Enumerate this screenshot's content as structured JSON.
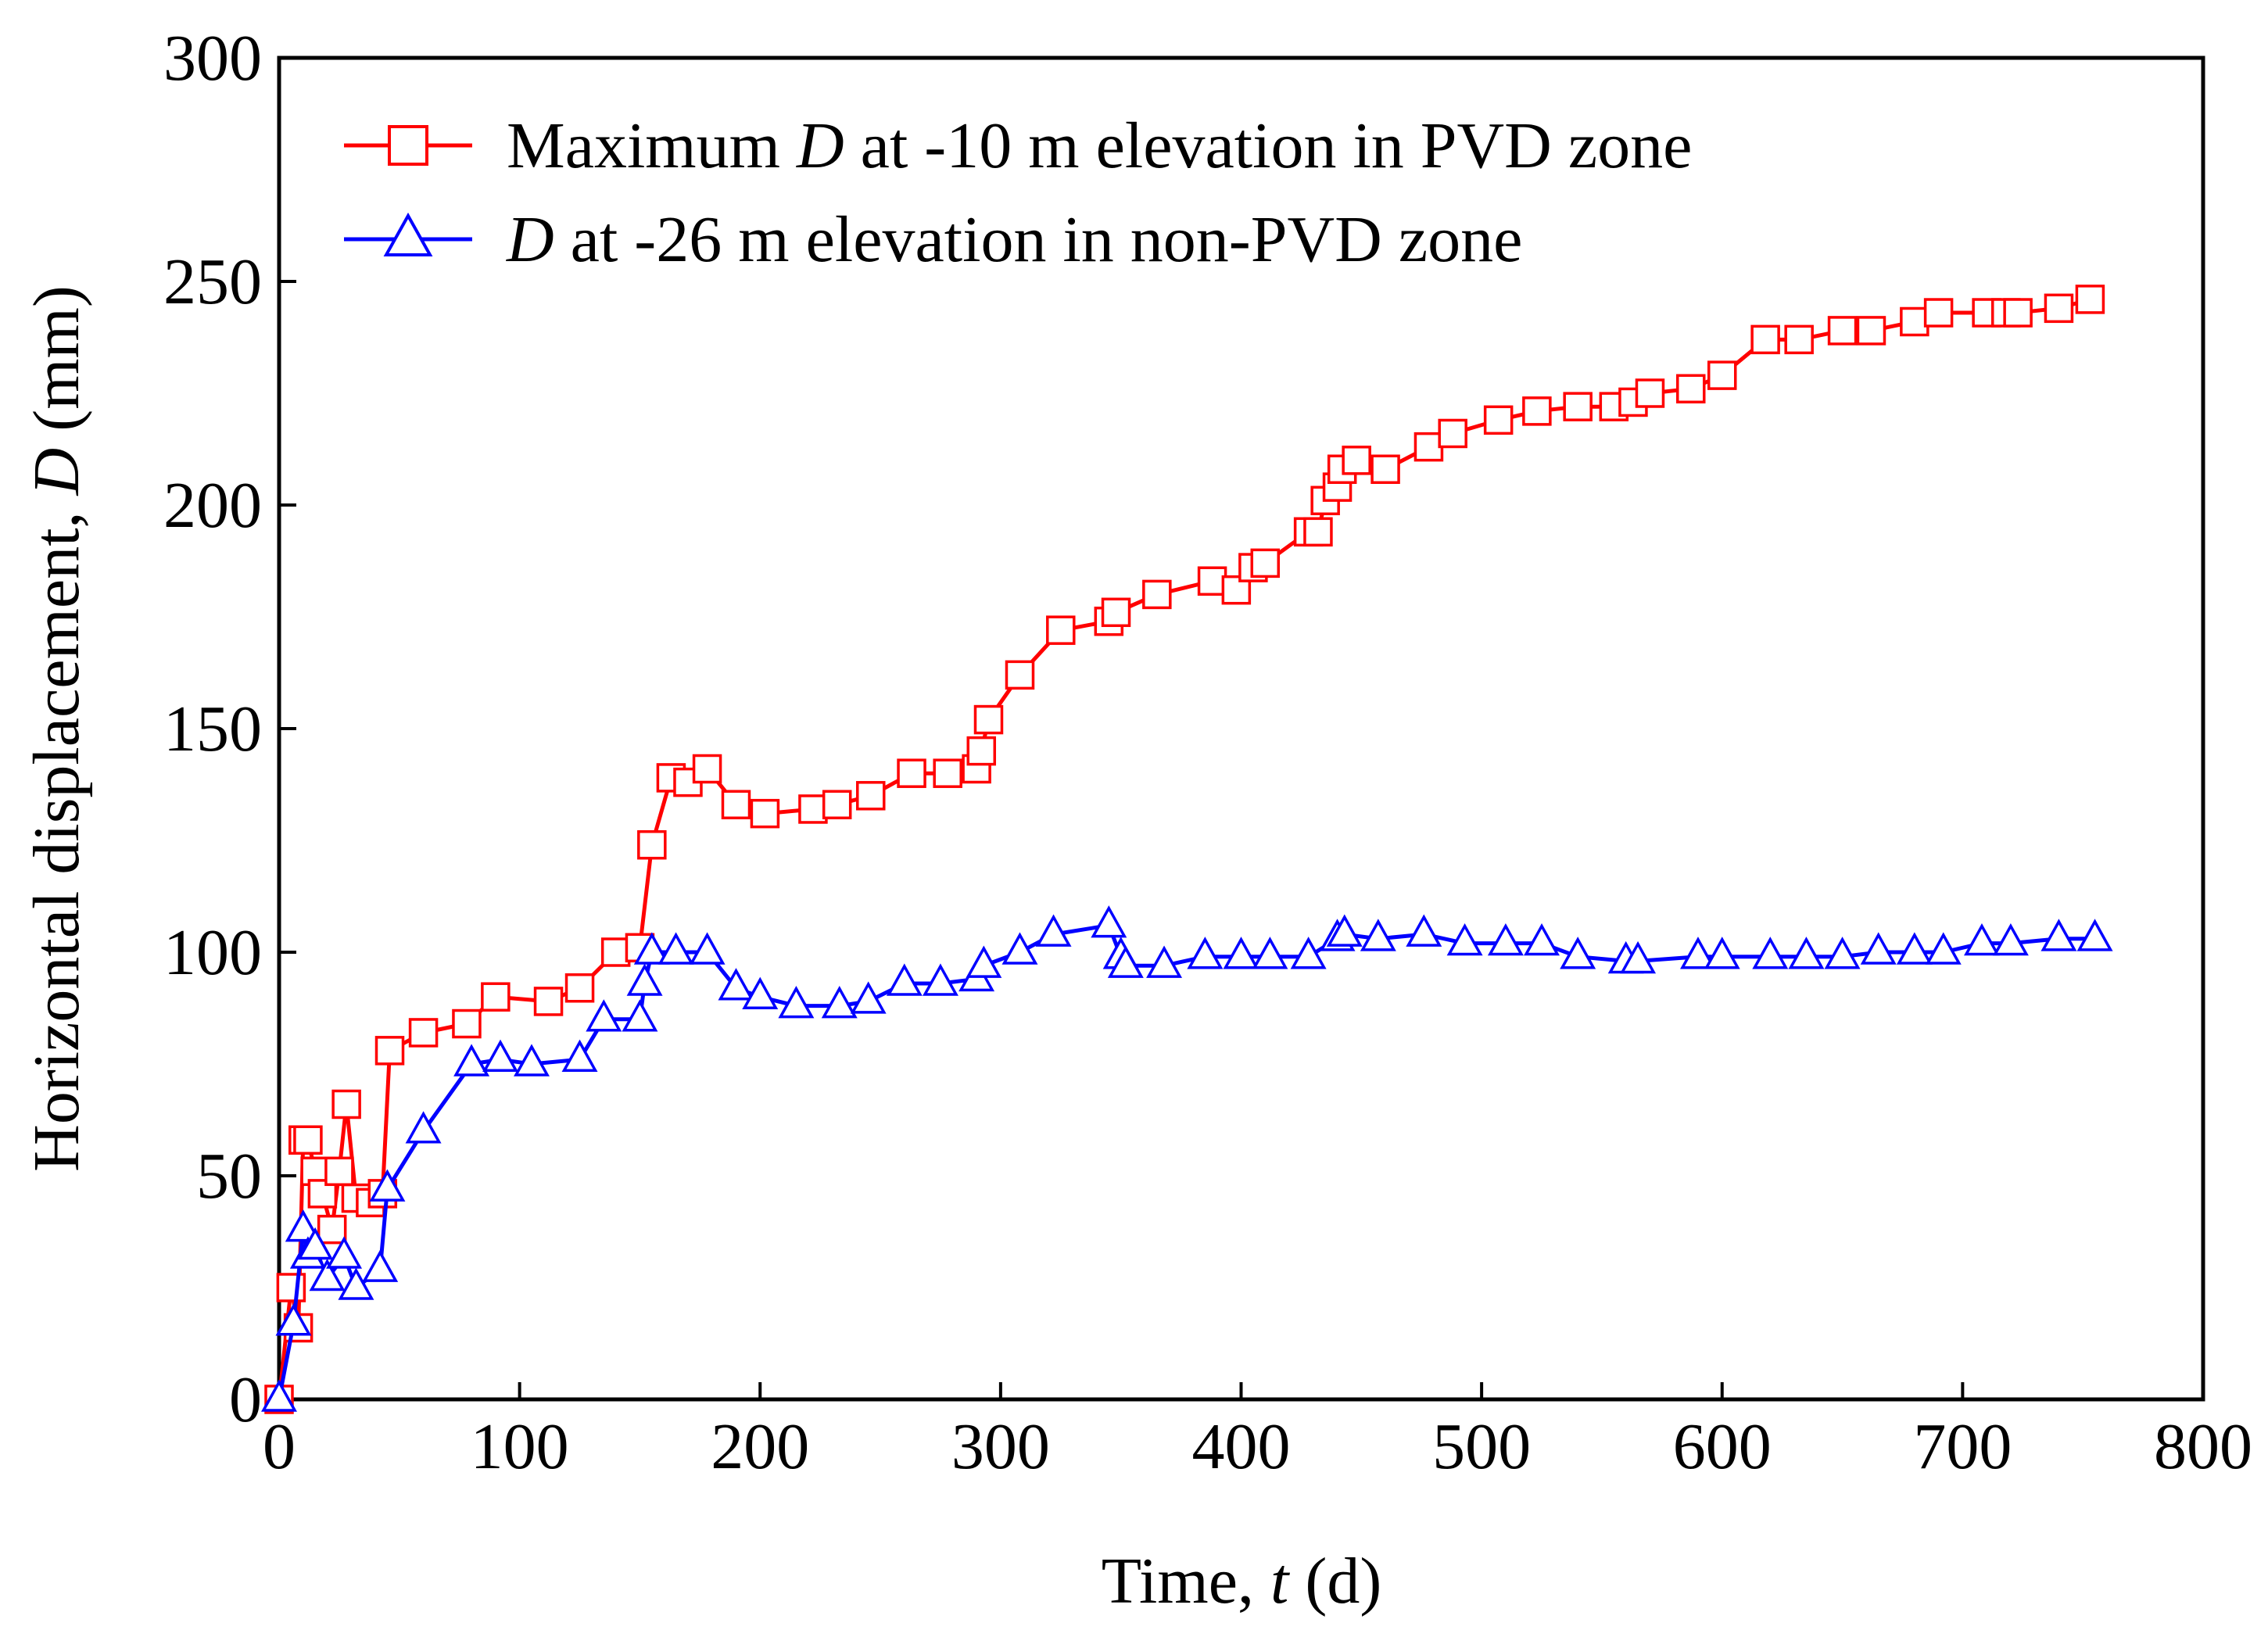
{
  "chart_data": {
    "type": "line",
    "title": "",
    "xlabel": {
      "prefix": "Time, ",
      "var": "t",
      "suffix": " (d)"
    },
    "ylabel": {
      "prefix": "Horizontal displacement, ",
      "var": "D",
      "suffix": " (mm)"
    },
    "xlim": [
      0,
      800
    ],
    "ylim": [
      0,
      300
    ],
    "xticks": [
      0,
      100,
      200,
      300,
      400,
      500,
      600,
      700,
      800
    ],
    "yticks": [
      0,
      50,
      100,
      150,
      200,
      250,
      300
    ],
    "grid": false,
    "legend_position": "top-left",
    "series": [
      {
        "name": "Maximum D at -10 m elevation in PVD zone",
        "legend": {
          "before": "Maximum ",
          "var": "D",
          "after": " at -10 m elevation in PVD zone"
        },
        "color": "#ff0000",
        "marker": "square",
        "x": [
          0,
          5,
          8,
          10,
          12,
          15,
          18,
          22,
          25,
          28,
          32,
          38,
          43,
          46,
          60,
          78,
          90,
          112,
          125,
          140,
          150,
          155,
          163,
          170,
          178,
          190,
          202,
          222,
          232,
          246,
          263,
          278,
          290,
          292,
          295,
          308,
          325,
          345,
          348,
          365,
          388,
          398,
          405,
          410,
          428,
          432,
          435,
          440,
          442,
          448,
          460,
          478,
          488,
          507,
          523,
          540,
          555,
          563,
          570,
          587,
          600,
          618,
          632,
          650,
          662,
          680,
          690,
          710,
          718,
          723,
          740,
          753
        ],
        "y": [
          0,
          25,
          16,
          58,
          58,
          51,
          46,
          38,
          51,
          66,
          45,
          44,
          46,
          78,
          82,
          84,
          90,
          89,
          92,
          100,
          101,
          124,
          139,
          138,
          141,
          133,
          131,
          132,
          133,
          135,
          140,
          140,
          141,
          145,
          152,
          162,
          172,
          174,
          176,
          180,
          183,
          181,
          186,
          187,
          194,
          194,
          201,
          204,
          208,
          210,
          208,
          213,
          216,
          219,
          221,
          222,
          222,
          223,
          225,
          226,
          229,
          237,
          237,
          239,
          239,
          241,
          243,
          243,
          243,
          243,
          244,
          246
        ]
      },
      {
        "name": "D at -26 m elevation in non-PVD zone",
        "legend": {
          "before": "",
          "var": "D",
          "after": " at -26 m elevation in non-PVD zone"
        },
        "color": "#0000ff",
        "marker": "triangle",
        "x": [
          0,
          6,
          10,
          12,
          15,
          20,
          27,
          32,
          42,
          45,
          60,
          80,
          92,
          105,
          125,
          135,
          150,
          152,
          155,
          165,
          178,
          190,
          200,
          215,
          233,
          245,
          260,
          275,
          290,
          293,
          308,
          322,
          345,
          350,
          352,
          368,
          385,
          400,
          412,
          428,
          440,
          443,
          457,
          476,
          493,
          510,
          525,
          540,
          560,
          565,
          590,
          600,
          620,
          635,
          650,
          665,
          680,
          692,
          708,
          720,
          740,
          755
        ],
        "y": [
          0,
          17,
          38,
          32,
          34,
          27,
          32,
          25,
          29,
          47,
          60,
          75,
          76,
          75,
          76,
          85,
          85,
          93,
          100,
          100,
          100,
          92,
          90,
          88,
          88,
          89,
          93,
          93,
          94,
          97,
          100,
          104,
          106,
          99,
          97,
          97,
          99,
          99,
          99,
          99,
          103,
          104,
          103,
          104,
          102,
          102,
          102,
          99,
          98,
          98,
          99,
          99,
          99,
          99,
          99,
          100,
          100,
          100,
          102,
          102,
          103,
          103
        ]
      }
    ]
  }
}
